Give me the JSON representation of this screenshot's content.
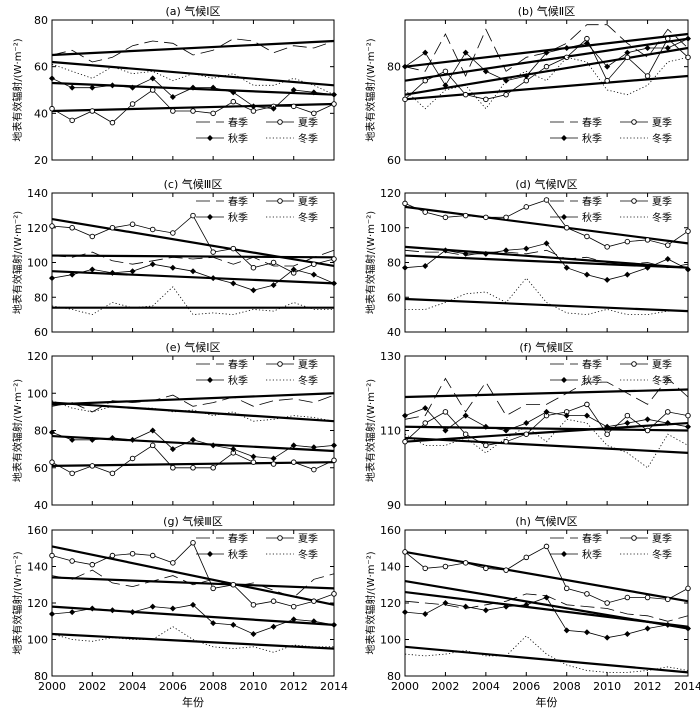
{
  "figure": {
    "xlabel": "年份",
    "ylabel": "地表有效辐射/(W·m⁻²)",
    "x_ticks": [
      2000,
      2002,
      2004,
      2006,
      2008,
      2010,
      2012,
      2014
    ],
    "legend_labels": [
      "春季",
      "夏季",
      "秋季",
      "冬季"
    ]
  },
  "chart_data": [
    {
      "type": "line",
      "title": "(a) 气候Ⅰ区",
      "ylim": [
        20,
        80
      ],
      "yticks": [
        20,
        40,
        60,
        80
      ],
      "x": [
        2000,
        2001,
        2002,
        2003,
        2004,
        2005,
        2006,
        2007,
        2008,
        2009,
        2010,
        2011,
        2012,
        2013,
        2014
      ],
      "series": [
        {
          "name": "春季",
          "values": [
            65,
            67,
            62,
            64,
            69,
            71,
            70,
            65,
            67,
            72,
            71,
            66,
            69,
            68,
            71
          ]
        },
        {
          "name": "夏季",
          "values": [
            42,
            37,
            41,
            36,
            44,
            50,
            41,
            41,
            40,
            45,
            41,
            43,
            43,
            40,
            44
          ]
        },
        {
          "name": "秋季",
          "values": [
            55,
            51,
            51,
            52,
            51,
            55,
            47,
            51,
            51,
            49,
            43,
            42,
            50,
            49,
            48
          ]
        },
        {
          "name": "冬季",
          "values": [
            61,
            58,
            55,
            60,
            57,
            58,
            54,
            57,
            55,
            57,
            52,
            52,
            55,
            52,
            48
          ]
        }
      ],
      "trends": [
        [
          65,
          71
        ],
        [
          41,
          44
        ],
        [
          53,
          48
        ],
        [
          62,
          52
        ]
      ]
    },
    {
      "type": "line",
      "title": "(b) 气候Ⅱ区",
      "ylim": [
        60,
        90
      ],
      "yticks": [
        60,
        80
      ],
      "x": [
        2000,
        2001,
        2002,
        2003,
        2004,
        2005,
        2006,
        2007,
        2008,
        2009,
        2010,
        2011,
        2012,
        2013,
        2014
      ],
      "series": [
        {
          "name": "春季",
          "values": [
            80,
            79,
            87,
            78,
            88,
            79,
            82,
            83,
            85,
            89,
            89,
            85,
            82,
            88,
            84
          ]
        },
        {
          "name": "夏季",
          "values": [
            73,
            77,
            79,
            74,
            73,
            74,
            77,
            80,
            82,
            86,
            77,
            82,
            78,
            86,
            82
          ]
        },
        {
          "name": "秋季",
          "values": [
            80,
            83,
            76,
            83,
            79,
            77,
            78,
            83,
            84,
            85,
            80,
            83,
            84,
            84,
            86
          ]
        },
        {
          "name": "冬季",
          "values": [
            75,
            71,
            75,
            76,
            71,
            77,
            79,
            77,
            82,
            81,
            75,
            74,
            76,
            81,
            82
          ]
        }
      ],
      "trends": [
        [
          80,
          87
        ],
        [
          73,
          78
        ],
        [
          77,
          86
        ],
        [
          74,
          84
        ]
      ]
    },
    {
      "type": "line",
      "title": "(c) 气候Ⅲ区",
      "ylim": [
        60,
        140
      ],
      "yticks": [
        60,
        80,
        100,
        120,
        140
      ],
      "x": [
        2000,
        2001,
        2002,
        2003,
        2004,
        2005,
        2006,
        2007,
        2008,
        2009,
        2010,
        2011,
        2012,
        2013,
        2014
      ],
      "series": [
        {
          "name": "春季",
          "values": [
            104,
            103,
            106,
            101,
            99,
            101,
            103,
            102,
            103,
            99,
            103,
            98,
            98,
            103,
            107
          ]
        },
        {
          "name": "夏季",
          "values": [
            121,
            120,
            115,
            120,
            122,
            119,
            117,
            127,
            106,
            108,
            97,
            100,
            94,
            99,
            102
          ]
        },
        {
          "name": "秋季",
          "values": [
            91,
            93,
            96,
            94,
            95,
            99,
            97,
            95,
            91,
            88,
            84,
            87,
            96,
            93,
            88
          ]
        },
        {
          "name": "冬季",
          "values": [
            75,
            73,
            70,
            77,
            74,
            75,
            86,
            70,
            71,
            70,
            73,
            72,
            77,
            73,
            73
          ]
        }
      ],
      "trends": [
        [
          125,
          98
        ],
        [
          104,
          103
        ],
        [
          95,
          88
        ],
        [
          74,
          74
        ]
      ]
    },
    {
      "type": "line",
      "title": "(d) 气候Ⅳ区",
      "ylim": [
        40,
        120
      ],
      "yticks": [
        40,
        60,
        80,
        100,
        120
      ],
      "x": [
        2000,
        2001,
        2002,
        2003,
        2004,
        2005,
        2006,
        2007,
        2008,
        2009,
        2010,
        2011,
        2012,
        2013,
        2014
      ],
      "series": [
        {
          "name": "春季",
          "values": [
            87,
            86,
            86,
            84,
            86,
            86,
            85,
            87,
            82,
            83,
            80,
            79,
            80,
            77,
            79
          ]
        },
        {
          "name": "夏季",
          "values": [
            114,
            109,
            106,
            107,
            106,
            106,
            112,
            116,
            100,
            95,
            89,
            92,
            93,
            90,
            98
          ]
        },
        {
          "name": "秋季",
          "values": [
            77,
            78,
            87,
            85,
            85,
            87,
            88,
            91,
            77,
            73,
            70,
            73,
            77,
            82,
            76
          ]
        },
        {
          "name": "冬季",
          "values": [
            53,
            53,
            57,
            62,
            63,
            57,
            71,
            57,
            51,
            50,
            53,
            50,
            50,
            52,
            52
          ]
        }
      ],
      "trends": [
        [
          112,
          91
        ],
        [
          89,
          77
        ],
        [
          84,
          77
        ],
        [
          59,
          52
        ]
      ]
    },
    {
      "type": "line",
      "title": "(e) 气候Ⅰ区",
      "ylim": [
        40,
        120
      ],
      "yticks": [
        40,
        60,
        80,
        100,
        120
      ],
      "x": [
        2000,
        2001,
        2002,
        2003,
        2004,
        2005,
        2006,
        2007,
        2008,
        2009,
        2010,
        2011,
        2012,
        2013,
        2014
      ],
      "series": [
        {
          "name": "春季",
          "values": [
            93,
            95,
            90,
            96,
            95,
            96,
            99,
            93,
            95,
            98,
            93,
            96,
            97,
            95,
            99
          ]
        },
        {
          "name": "夏季",
          "values": [
            63,
            57,
            61,
            57,
            65,
            72,
            60,
            60,
            60,
            68,
            63,
            62,
            63,
            59,
            64
          ]
        },
        {
          "name": "秋季",
          "values": [
            79,
            75,
            75,
            76,
            75,
            80,
            70,
            75,
            72,
            70,
            66,
            65,
            72,
            71,
            72
          ]
        },
        {
          "name": "冬季",
          "values": [
            96,
            92,
            90,
            93,
            92,
            92,
            90,
            91,
            88,
            90,
            85,
            86,
            88,
            87,
            85
          ]
        }
      ],
      "trends": [
        [
          94,
          100
        ],
        [
          61,
          63
        ],
        [
          77,
          69
        ],
        [
          95,
          85
        ]
      ]
    },
    {
      "type": "line",
      "title": "(f) 气候Ⅱ区",
      "ylim": [
        90,
        130
      ],
      "yticks": [
        90,
        110,
        130
      ],
      "x": [
        2000,
        2001,
        2002,
        2003,
        2004,
        2005,
        2006,
        2007,
        2008,
        2009,
        2010,
        2011,
        2012,
        2013,
        2014
      ],
      "series": [
        {
          "name": "春季",
          "values": [
            113,
            114,
            124,
            115,
            123,
            114,
            117,
            117,
            120,
            123,
            123,
            120,
            117,
            124,
            119
          ]
        },
        {
          "name": "夏季",
          "values": [
            107,
            112,
            115,
            109,
            106,
            107,
            109,
            114,
            115,
            117,
            109,
            114,
            110,
            115,
            114
          ]
        },
        {
          "name": "秋季",
          "values": [
            114,
            116,
            110,
            114,
            111,
            110,
            112,
            115,
            114,
            114,
            111,
            112,
            113,
            112,
            111
          ]
        },
        {
          "name": "冬季",
          "values": [
            109,
            106,
            106,
            108,
            104,
            108,
            111,
            107,
            113,
            112,
            106,
            104,
            100,
            109,
            106
          ]
        }
      ],
      "trends": [
        [
          119,
          121
        ],
        [
          107,
          112
        ],
        [
          111,
          110
        ],
        [
          108,
          104
        ]
      ]
    },
    {
      "type": "line",
      "title": "(g) 气候Ⅲ区",
      "ylim": [
        80,
        160
      ],
      "yticks": [
        80,
        100,
        120,
        140,
        160
      ],
      "x": [
        2000,
        2001,
        2002,
        2003,
        2004,
        2005,
        2006,
        2007,
        2008,
        2009,
        2010,
        2011,
        2012,
        2013,
        2014
      ],
      "series": [
        {
          "name": "春季",
          "values": [
            135,
            133,
            138,
            131,
            129,
            132,
            135,
            130,
            133,
            129,
            131,
            127,
            123,
            133,
            136
          ]
        },
        {
          "name": "夏季",
          "values": [
            146,
            143,
            141,
            146,
            147,
            146,
            142,
            153,
            128,
            130,
            119,
            121,
            118,
            121,
            125
          ]
        },
        {
          "name": "秋季",
          "values": [
            114,
            115,
            117,
            116,
            115,
            118,
            117,
            119,
            109,
            108,
            103,
            107,
            111,
            110,
            108
          ]
        },
        {
          "name": "冬季",
          "values": [
            103,
            100,
            99,
            101,
            100,
            100,
            107,
            100,
            96,
            95,
            96,
            93,
            97,
            96,
            96
          ]
        }
      ],
      "trends": [
        [
          151,
          119
        ],
        [
          134,
          128
        ],
        [
          118,
          108
        ],
        [
          103,
          95
        ]
      ]
    },
    {
      "type": "line",
      "title": "(h) 气候Ⅳ区",
      "ylim": [
        80,
        160
      ],
      "yticks": [
        80,
        100,
        120,
        140,
        160
      ],
      "x": [
        2000,
        2001,
        2002,
        2003,
        2004,
        2005,
        2006,
        2007,
        2008,
        2009,
        2010,
        2011,
        2012,
        2013,
        2014
      ],
      "series": [
        {
          "name": "春季",
          "values": [
            121,
            120,
            119,
            117,
            119,
            121,
            125,
            124,
            119,
            118,
            117,
            114,
            113,
            110,
            113
          ]
        },
        {
          "name": "夏季",
          "values": [
            148,
            139,
            140,
            142,
            139,
            138,
            145,
            151,
            128,
            125,
            120,
            123,
            123,
            122,
            128
          ]
        },
        {
          "name": "秋季",
          "values": [
            115,
            114,
            120,
            118,
            116,
            118,
            119,
            123,
            105,
            104,
            101,
            103,
            106,
            108,
            106
          ]
        },
        {
          "name": "冬季",
          "values": [
            92,
            91,
            92,
            94,
            91,
            91,
            102,
            92,
            86,
            83,
            82,
            82,
            83,
            85,
            83
          ]
        }
      ],
      "trends": [
        [
          148,
          121
        ],
        [
          132,
          106
        ],
        [
          126,
          107
        ],
        [
          96,
          82
        ]
      ]
    }
  ]
}
